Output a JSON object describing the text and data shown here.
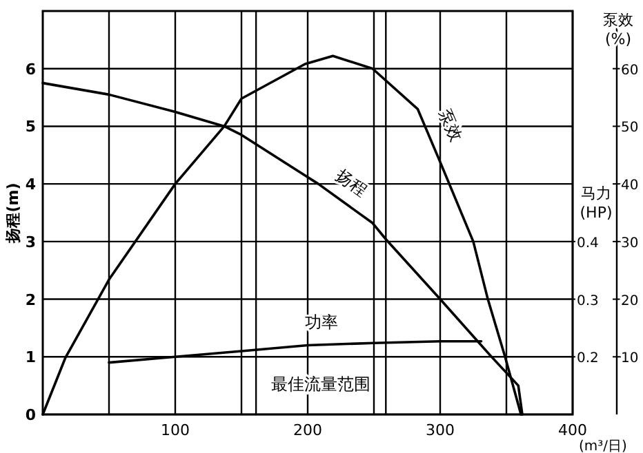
{
  "chart_data": {
    "type": "line",
    "xlabel": "(m³/日)",
    "ylabel": "扬程(m)",
    "y2label": "泵效\n(%)",
    "y3label": "马力\n(HP)",
    "xlim": [
      0,
      400
    ],
    "xticks": [
      {
        "value": 50,
        "label": null
      },
      100,
      {
        "value": 150,
        "label": null
      },
      200,
      {
        "value": 250,
        "label": null
      },
      300,
      {
        "value": 350,
        "label": null
      },
      400
    ],
    "ylim": [
      0,
      7
    ],
    "yticks": [
      0,
      1,
      2,
      3,
      4,
      5,
      6
    ],
    "y2lim": [
      0,
      70
    ],
    "y2ticks": [
      10,
      20,
      30,
      40,
      50,
      60
    ],
    "y3lim": [
      0.1,
      0.8
    ],
    "y3ticks": [
      0.2,
      0.3,
      0.4
    ],
    "grid": true,
    "series": [
      {
        "name": "泵效",
        "color": "#000000",
        "axis": "y2",
        "x": [
          0,
          17,
          50,
          100,
          137,
          150,
          198,
          219,
          249,
          283,
          300,
          325,
          336,
          349,
          361
        ],
        "values": [
          0,
          9.8,
          23.4,
          40,
          50,
          54.8,
          60.8,
          62.2,
          60,
          53,
          43.8,
          30,
          20,
          10,
          0
        ]
      },
      {
        "name": "扬程",
        "color": "#000000",
        "x": [
          0,
          50,
          100,
          137,
          150,
          208,
          249,
          259,
          300,
          338,
          359,
          362
        ],
        "values": [
          5.75,
          5.55,
          5.25,
          5.0,
          4.85,
          4.0,
          3.32,
          3.04,
          2.0,
          1.02,
          0.5,
          0
        ]
      },
      {
        "name": "功率",
        "color": "#000000",
        "axis": "y3",
        "x": [
          50,
          100,
          150,
          200,
          250,
          300,
          331
        ],
        "values": [
          0.19,
          0.2,
          0.21,
          0.22,
          0.224,
          0.227,
          0.227
        ]
      }
    ],
    "ref_lines": [
      {
        "axis": "x",
        "value": 161,
        "label": null
      },
      {
        "axis": "x",
        "value": 259,
        "label": null
      }
    ],
    "annotations": [
      "最佳流量范围"
    ]
  }
}
